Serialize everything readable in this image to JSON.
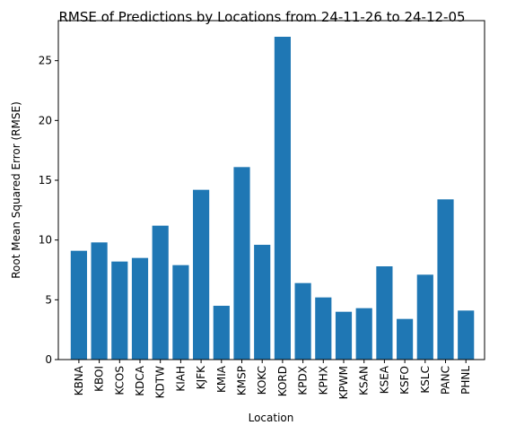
{
  "chart_data": {
    "type": "bar",
    "title": "RMSE of Predictions by Locations from 24-11-26 to 24-12-05",
    "xlabel": "Location",
    "ylabel": "Root Mean Squared Error (RMSE)",
    "categories": [
      "KBNA",
      "KBOI",
      "KCOS",
      "KDCA",
      "KDTW",
      "KIAH",
      "KJFK",
      "KMIA",
      "KMSP",
      "KOKC",
      "KORD",
      "KPDX",
      "KPHX",
      "KPWM",
      "KSAN",
      "KSEA",
      "KSFO",
      "KSLC",
      "PANC",
      "PHNL"
    ],
    "values": [
      9.1,
      9.8,
      8.2,
      8.5,
      11.2,
      7.9,
      14.2,
      4.5,
      16.1,
      9.6,
      27.0,
      6.4,
      5.2,
      4.0,
      4.3,
      7.8,
      3.4,
      7.1,
      13.4,
      4.1
    ],
    "ylim": [
      0,
      28.35
    ],
    "yticks": [
      0,
      5,
      10,
      15,
      20,
      25
    ],
    "bar_color": "#1f77b4",
    "grid": false,
    "legend": "none"
  }
}
